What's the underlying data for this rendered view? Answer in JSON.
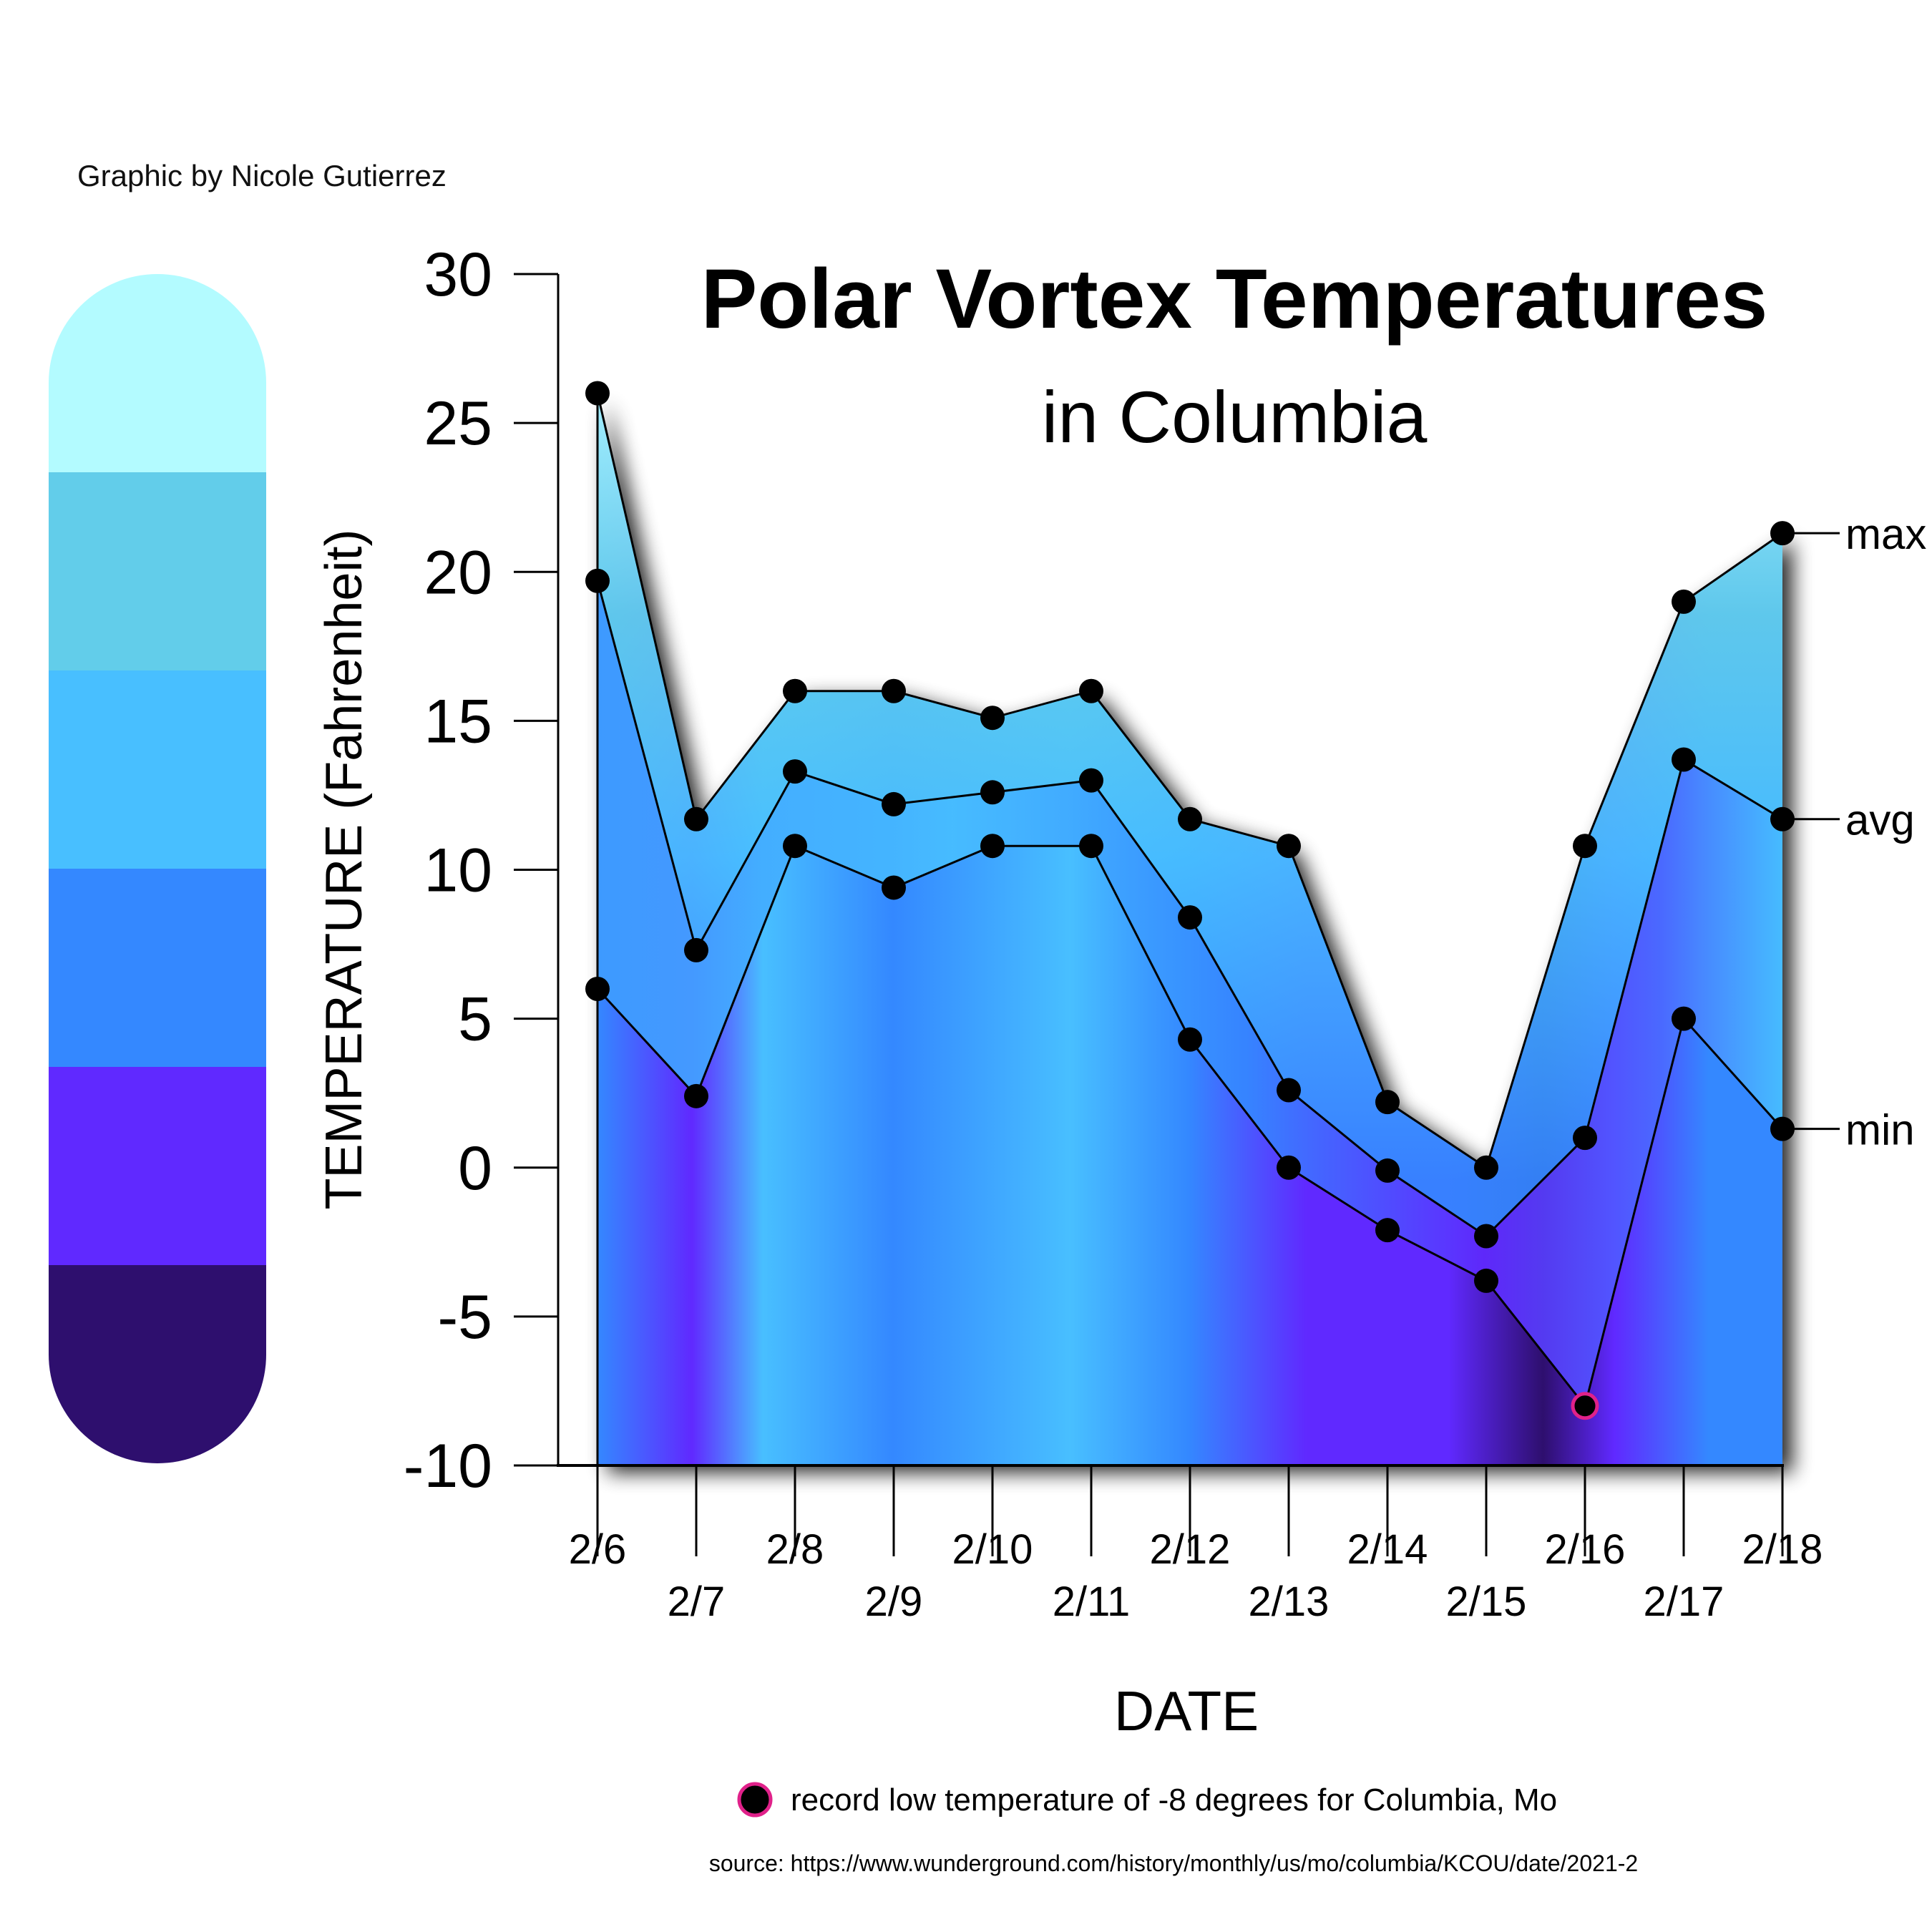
{
  "credit": "Graphic by Nicole Gutierrez",
  "legend_note": "record low temperature of -8 degrees for Columbia, Mo",
  "source": "source: https://www.wunderground.com/history/monthly/us/mo/columbia/KCOU/date/2021-2",
  "colors": {
    "scale": [
      "#b3fbff",
      "#62cdea",
      "#48bfff",
      "#3488ff",
      "#6029ff",
      "#2e0f6e"
    ],
    "record_marker": "#e0218a",
    "point": "#000000"
  },
  "chart_data": {
    "type": "area",
    "title": "Polar Vortex Temperatures",
    "subtitle": "in Columbia",
    "xlabel": "DATE",
    "ylabel": "TEMPERATURE (Fahrenheit)",
    "ylim": [
      -10,
      30
    ],
    "yticks": [
      "30",
      "25",
      "20",
      "15",
      "10",
      "5",
      "0",
      "-5",
      "-10"
    ],
    "categories": [
      "2/6",
      "2/7",
      "2/8",
      "2/9",
      "2/10",
      "2/11",
      "2/12",
      "2/13",
      "2/14",
      "2/15",
      "2/16",
      "2/17",
      "2/18"
    ],
    "series": [
      {
        "name": "max",
        "values": [
          26,
          11.7,
          16,
          16,
          15.1,
          16,
          11.7,
          10.8,
          2.2,
          0,
          10.8,
          19,
          21.3
        ]
      },
      {
        "name": "avg",
        "values": [
          19.7,
          7.3,
          13.3,
          12.2,
          12.6,
          13,
          8.4,
          2.6,
          -0.1,
          -2.3,
          1,
          13.7,
          11.7
        ]
      },
      {
        "name": "min",
        "values": [
          6,
          2.4,
          10.8,
          9.4,
          10.8,
          10.8,
          4.3,
          0,
          -2.1,
          -3.8,
          -8,
          5,
          1.3
        ]
      }
    ],
    "record_low": {
      "category": "2/16",
      "value": -8
    },
    "grid": false
  }
}
